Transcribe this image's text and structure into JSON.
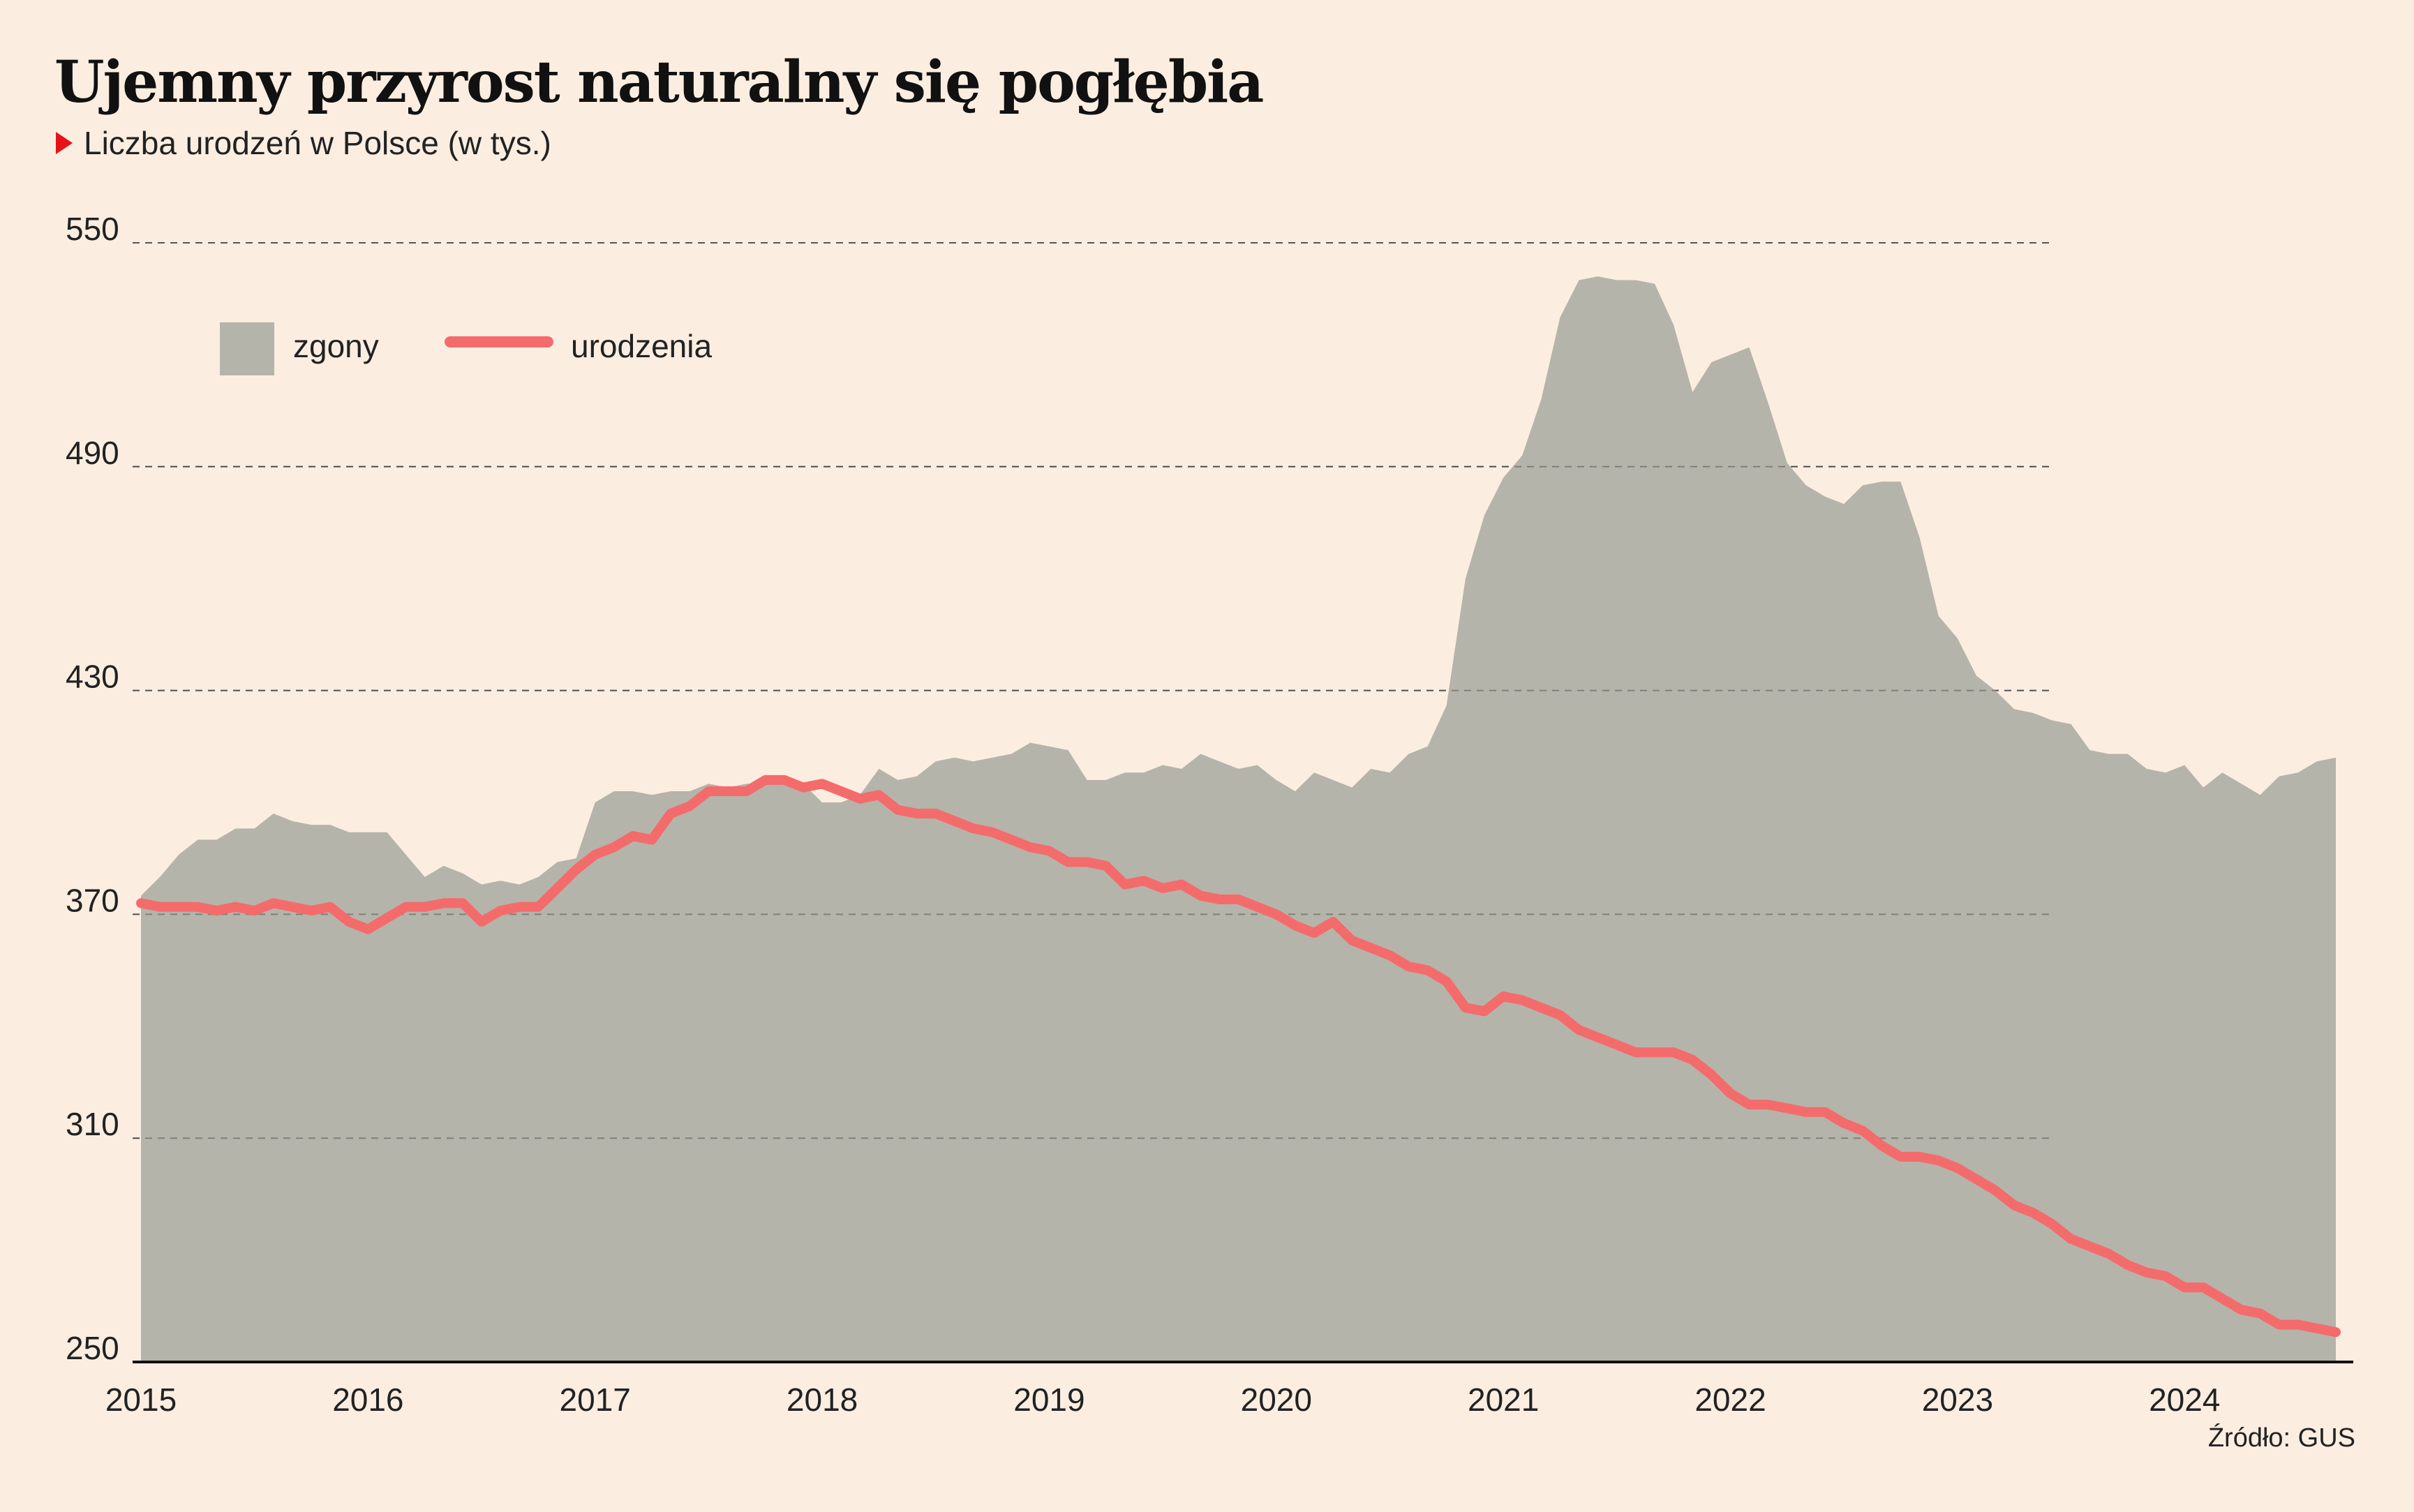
{
  "title": "Ujemny przyrost naturalny się pogłębia",
  "subtitle": "Liczba urodzeń w Polsce (w tys.)",
  "source": "Źródło: GUS",
  "colors": {
    "background": "#fbeee1",
    "deaths": "#b5b4aa",
    "births": "#f46b6b",
    "marker": "#e8111a",
    "grid": "#555555"
  },
  "chart_data": {
    "type": "area",
    "x_start": 2015.0,
    "x_step": 0.08333,
    "xlim": [
      2015,
      2024.8
    ],
    "ylim": [
      250,
      550
    ],
    "yticks": [
      550,
      490,
      430,
      370,
      310,
      250
    ],
    "xticks": [
      2015,
      2016,
      2017,
      2018,
      2019,
      2020,
      2021,
      2022,
      2023,
      2024
    ],
    "grid": true,
    "legend_position": "top-left",
    "series": [
      {
        "name": "zgony",
        "kind": "area",
        "values": [
          375,
          380,
          386,
          390,
          390,
          393,
          393,
          397,
          395,
          394,
          394,
          392,
          392,
          392,
          386,
          380,
          383,
          381,
          378,
          379,
          378,
          380,
          384,
          385,
          400,
          403,
          403,
          402,
          403,
          403,
          405,
          404,
          405,
          405,
          406,
          405,
          400,
          400,
          402,
          409,
          406,
          407,
          411,
          412,
          411,
          412,
          413,
          416,
          415,
          414,
          406,
          406,
          408,
          408,
          410,
          409,
          413,
          411,
          409,
          410,
          406,
          403,
          408,
          406,
          404,
          409,
          408,
          413,
          415,
          426,
          460,
          477,
          487,
          493,
          508,
          530,
          540,
          541,
          540,
          540,
          539,
          528,
          510,
          518,
          520,
          522,
          507,
          491,
          485,
          482,
          480,
          485,
          486,
          486,
          471,
          450,
          444,
          434,
          430,
          425,
          424,
          422,
          421,
          414,
          413,
          413,
          409,
          408,
          410,
          404,
          408,
          405,
          402,
          407,
          408,
          411,
          412
        ]
      },
      {
        "name": "urodzenia",
        "kind": "line",
        "values": [
          373,
          372,
          372,
          372,
          371,
          372,
          371,
          373,
          372,
          371,
          372,
          368,
          366,
          369,
          372,
          372,
          373,
          373,
          368,
          371,
          372,
          372,
          377,
          382,
          386,
          388,
          391,
          390,
          397,
          399,
          403,
          403,
          403,
          406,
          406,
          404,
          405,
          403,
          401,
          402,
          398,
          397,
          397,
          395,
          393,
          392,
          390,
          388,
          387,
          384,
          384,
          383,
          378,
          379,
          377,
          378,
          375,
          374,
          374,
          372,
          370,
          367,
          365,
          368,
          363,
          361,
          359,
          356,
          355,
          352,
          345,
          344,
          348,
          347,
          345,
          343,
          339,
          337,
          335,
          333,
          333,
          333,
          331,
          327,
          322,
          319,
          319,
          318,
          317,
          317,
          314,
          312,
          308,
          305,
          305,
          304,
          302,
          299,
          296,
          292,
          290,
          287,
          283,
          281,
          279,
          276,
          274,
          273,
          270,
          270,
          267,
          264,
          263,
          260,
          260,
          259,
          258
        ]
      }
    ],
    "legend": [
      {
        "label": "zgony",
        "kind": "area"
      },
      {
        "label": "urodzenia",
        "kind": "line"
      }
    ]
  }
}
